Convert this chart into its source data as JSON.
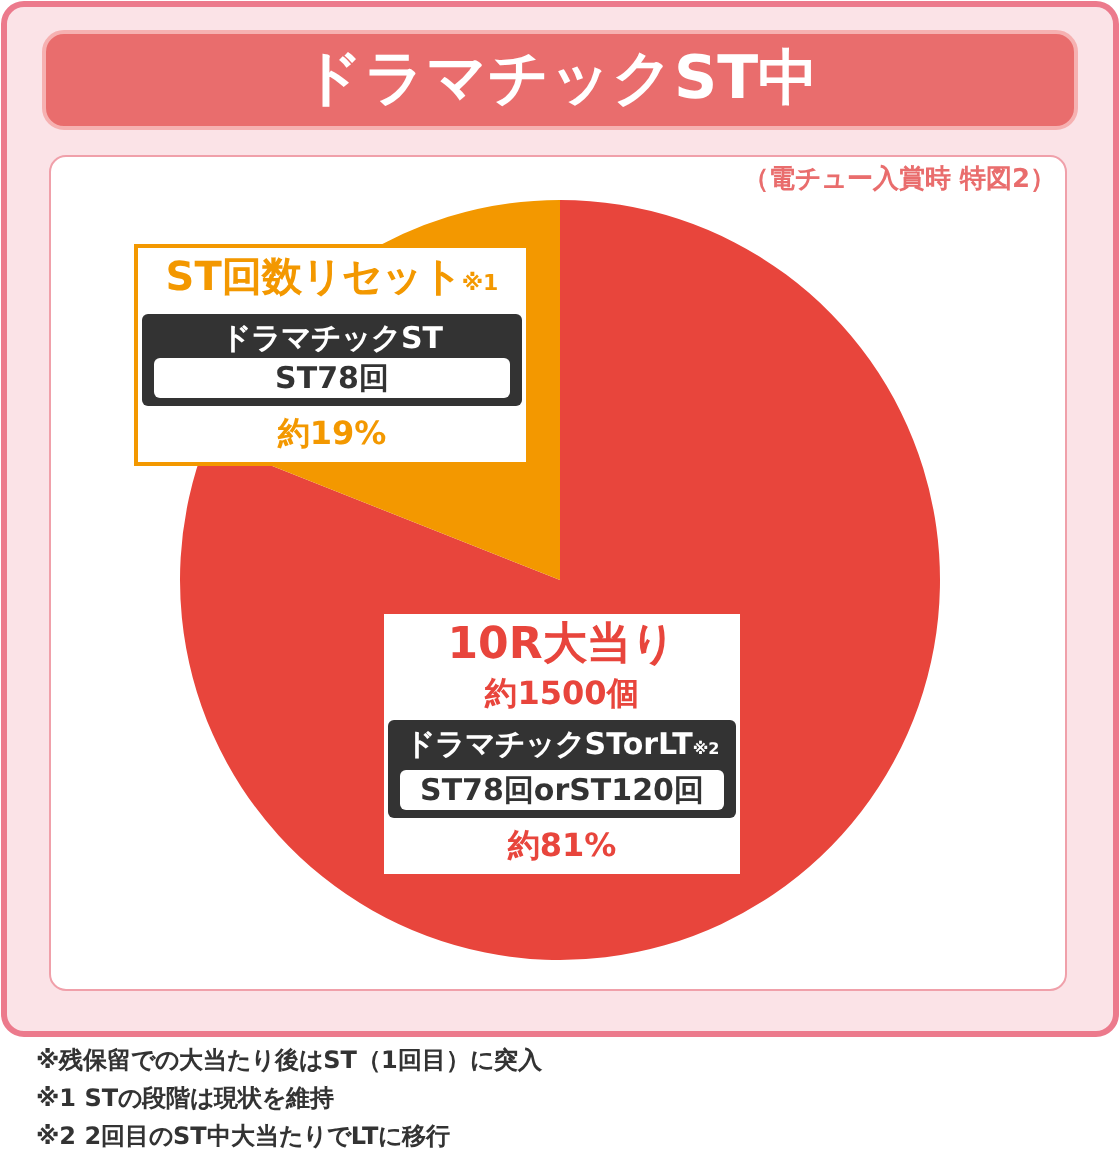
{
  "chart_data": {
    "type": "pie",
    "title": "ドラマチックST中",
    "subtitle": "（電チュー入賞時 特図2）",
    "categories": [
      "10R大当り",
      "ST回数リセット※1"
    ],
    "values": [
      81,
      19
    ],
    "colors": [
      "#e8453c",
      "#f39800"
    ],
    "value_labels": [
      "約81%",
      "約19%"
    ],
    "annotations": [
      {
        "text": "約1500個",
        "x": "10R大当り"
      },
      {
        "text": "ドラマチックSTorLT※2",
        "x": "10R大当り"
      },
      {
        "text": "ST78回orST120回",
        "x": "10R大当り"
      },
      {
        "text": "ドラマチックST",
        "x": "ST回数リセット※1"
      },
      {
        "text": "ST78回",
        "x": "ST回数リセット※1"
      },
      "※残保留での大当たり後はST（1回目）に突入",
      "※1 STの段階は現状を維持",
      "※2 2回目のST中大当たりでLTに移行"
    ],
    "legend": false
  }
}
